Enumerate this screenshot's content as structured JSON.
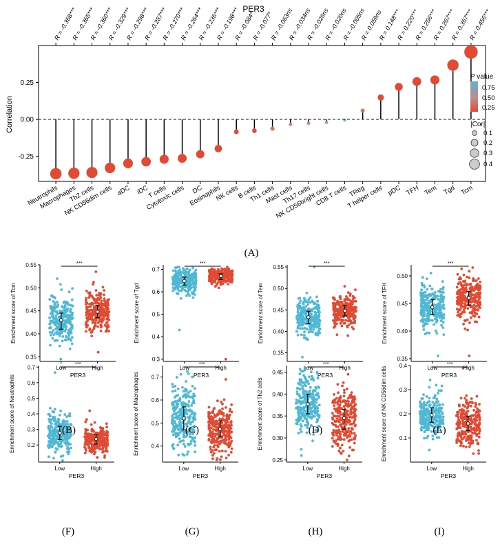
{
  "figure": {
    "panel_labels": [
      "(A)",
      "(B)",
      "(C)",
      "(D)",
      "(E)",
      "(F)",
      "(G)",
      "(H)",
      "(I)"
    ]
  },
  "colors": {
    "low_group": "#4fb8d4",
    "high_group": "#e04b33",
    "lollipop_high": "#e34a33",
    "lollipop_mid": "#c48a88",
    "lollipop_low": "#5db3cd",
    "axis": "#000000"
  },
  "chart_data": [
    {
      "id": "A",
      "type": "lollipop",
      "title": "PER3",
      "ylabel": "Correlation",
      "ylim": [
        -0.42,
        0.5
      ],
      "yticks": [
        -0.25,
        0.0,
        0.25
      ],
      "ytick_labels": [
        "-0.25",
        "0.00",
        "0.25"
      ],
      "categories": [
        "Neutrophils",
        "Macrophages",
        "Th2 cells",
        "NK CD56dim cells",
        "aDC",
        "iDC",
        "T cells",
        "Cytotoxic cells",
        "DC",
        "Eosinophils",
        "NK cells",
        "B cells",
        "Th1 cells",
        "Mast cells",
        "Th17 cells",
        "NK CD56bright cells",
        "CD8 T cells",
        "TReg",
        "T helper cells",
        "pDC",
        "TFH",
        "Tem",
        "Tgd",
        "Tcm"
      ],
      "values": [
        -0.368,
        -0.365,
        -0.36,
        -0.329,
        -0.298,
        -0.287,
        -0.27,
        -0.264,
        -0.236,
        -0.198,
        -0.084,
        -0.077,
        -0.063,
        -0.034,
        -0.026,
        -0.02,
        -0.005,
        0.059,
        0.148,
        0.22,
        0.256,
        0.267,
        0.367,
        0.456
      ],
      "top_labels": [
        "R = -0.368***",
        "R = -0.365***",
        "R = -0.360***",
        "R = -0.329***",
        "R = -0.298***",
        "R = -0.287***",
        "R = -0.270***",
        "R = -0.264***",
        "R = -0.236***",
        "R = -0.198***",
        "R = -0.084*",
        "R = -0.077*",
        "R = -0.063ns",
        "R = -0.034ns",
        "R = -0.026ns",
        "R = -0.020ns",
        "R = -0.005ns",
        "R = 0.059ns",
        "R = 0.148***",
        "R = 0.220***",
        "R = 0.256***",
        "R = 0.267***",
        "R = 0.367***",
        "R = 0.456***"
      ],
      "p_values": [
        0,
        0,
        0,
        0,
        0,
        0,
        0,
        0,
        0,
        0,
        0.02,
        0.03,
        0.08,
        0.35,
        0.45,
        0.55,
        0.9,
        0.1,
        0,
        0,
        0,
        0,
        0,
        0
      ],
      "legend": {
        "pvalue_title": "P value",
        "pvalue_ticks": [
          "0.75",
          "0.50",
          "0.25"
        ],
        "cor_title": "|Cor|",
        "cor_ticks": [
          "0.1",
          "0.2",
          "0.3",
          "0.4"
        ],
        "placement": "right"
      }
    },
    {
      "id": "B",
      "type": "scatter",
      "ylabel": "Enrichment score of Tcm",
      "xlabel": "PER3",
      "categories": [
        "Low",
        "High"
      ],
      "significance": "***",
      "ylim": [
        0.34,
        0.55
      ],
      "yticks": [
        "0.35",
        "0.40",
        "0.45",
        "0.50",
        "0.55"
      ],
      "ytick_values": [
        0.35,
        0.4,
        0.45,
        0.5,
        0.55
      ],
      "series": [
        {
          "group": "Low",
          "median": 0.43,
          "q1": 0.41,
          "q3": 0.445,
          "min": 0.345,
          "max": 0.52
        },
        {
          "group": "High",
          "median": 0.448,
          "q1": 0.435,
          "q3": 0.462,
          "min": 0.36,
          "max": 0.535
        }
      ]
    },
    {
      "id": "C",
      "type": "scatter",
      "ylabel": "Enrichment score of Tgd",
      "xlabel": "PER3",
      "categories": [
        "Low",
        "High"
      ],
      "significance": "***",
      "ylim": [
        0.29,
        0.72
      ],
      "yticks": [
        "0.3",
        "0.4",
        "0.5",
        "0.6",
        "0.7"
      ],
      "ytick_values": [
        0.3,
        0.4,
        0.5,
        0.6,
        0.7
      ],
      "series": [
        {
          "group": "Low",
          "median": 0.648,
          "q1": 0.63,
          "q3": 0.665,
          "min": 0.43,
          "max": 0.71
        },
        {
          "group": "High",
          "median": 0.67,
          "q1": 0.655,
          "q3": 0.68,
          "min": 0.3,
          "max": 0.71
        }
      ]
    },
    {
      "id": "D",
      "type": "scatter",
      "ylabel": "Enrichment score of Tem",
      "xlabel": "PER3",
      "categories": [
        "Low",
        "High"
      ],
      "significance": "***",
      "ylim": [
        0.33,
        0.555
      ],
      "yticks": [
        "0.35",
        "0.40",
        "0.45",
        "0.50",
        "0.55"
      ],
      "ytick_values": [
        0.35,
        0.4,
        0.45,
        0.5,
        0.55
      ],
      "series": [
        {
          "group": "Low",
          "median": 0.433,
          "q1": 0.418,
          "q3": 0.447,
          "min": 0.34,
          "max": 0.55
        },
        {
          "group": "High",
          "median": 0.448,
          "q1": 0.436,
          "q3": 0.46,
          "min": 0.39,
          "max": 0.505
        }
      ]
    },
    {
      "id": "E",
      "type": "scatter",
      "ylabel": "Enrichment score of TFH",
      "xlabel": "PER3",
      "categories": [
        "Low",
        "High"
      ],
      "significance": "***",
      "ylim": [
        0.345,
        0.52
      ],
      "yticks": [
        "0.35",
        "0.40",
        "0.45",
        "0.50"
      ],
      "ytick_values": [
        0.35,
        0.4,
        0.45,
        0.5
      ],
      "series": [
        {
          "group": "Low",
          "median": 0.443,
          "q1": 0.43,
          "q3": 0.457,
          "min": 0.355,
          "max": 0.505
        },
        {
          "group": "High",
          "median": 0.46,
          "q1": 0.447,
          "q3": 0.472,
          "min": 0.355,
          "max": 0.515
        }
      ]
    },
    {
      "id": "F",
      "type": "scatter",
      "ylabel": "Enrichment score of Neutrophils",
      "xlabel": "PER3",
      "categories": [
        "Low",
        "High"
      ],
      "significance": "***",
      "ylim": [
        0.09,
        0.71
      ],
      "yticks": [
        "0.2",
        "0.3",
        "0.4",
        "0.5",
        "0.6",
        "0.7"
      ],
      "ytick_values": [
        0.2,
        0.3,
        0.4,
        0.5,
        0.6,
        0.7
      ],
      "series": [
        {
          "group": "Low",
          "median": 0.278,
          "q1": 0.235,
          "q3": 0.32,
          "min": 0.1,
          "max": 0.665
        },
        {
          "group": "High",
          "median": 0.238,
          "q1": 0.205,
          "q3": 0.265,
          "min": 0.12,
          "max": 0.42
        }
      ]
    },
    {
      "id": "G",
      "type": "scatter",
      "ylabel": "Enrichment score of Macrophages",
      "xlabel": "PER3",
      "categories": [
        "Low",
        "High"
      ],
      "significance": "***",
      "ylim": [
        0.33,
        0.75
      ],
      "yticks": [
        "0.4",
        "0.5",
        "0.6",
        "0.7"
      ],
      "ytick_values": [
        0.4,
        0.5,
        0.6,
        0.7
      ],
      "series": [
        {
          "group": "Low",
          "median": 0.52,
          "q1": 0.47,
          "q3": 0.57,
          "min": 0.36,
          "max": 0.725
        },
        {
          "group": "High",
          "median": 0.473,
          "q1": 0.44,
          "q3": 0.51,
          "min": 0.34,
          "max": 0.69
        }
      ]
    },
    {
      "id": "H",
      "type": "scatter",
      "ylabel": "Enrichment score of Th2 cells",
      "xlabel": "PER3",
      "categories": [
        "Low",
        "High"
      ],
      "significance": "***",
      "ylim": [
        0.245,
        0.465
      ],
      "yticks": [
        "0.25",
        "0.30",
        "0.35",
        "0.40",
        "0.45"
      ],
      "ytick_values": [
        0.25,
        0.3,
        0.35,
        0.4,
        0.45
      ],
      "series": [
        {
          "group": "Low",
          "median": 0.377,
          "q1": 0.355,
          "q3": 0.4,
          "min": 0.26,
          "max": 0.46
        },
        {
          "group": "High",
          "median": 0.345,
          "q1": 0.32,
          "q3": 0.365,
          "min": 0.25,
          "max": 0.445
        }
      ]
    },
    {
      "id": "I",
      "type": "scatter",
      "ylabel": "Enrichment score of NK CD56dim cells",
      "xlabel": "PER3",
      "categories": [
        "Low",
        "High"
      ],
      "significance": "***",
      "ylim": [
        0.0,
        0.4
      ],
      "yticks": [
        "0.1",
        "0.2",
        "0.3",
        "0.4"
      ],
      "ytick_values": [
        0.1,
        0.2,
        0.3,
        0.4
      ],
      "series": [
        {
          "group": "Low",
          "median": 0.195,
          "q1": 0.165,
          "q3": 0.225,
          "min": 0.05,
          "max": 0.34
        },
        {
          "group": "High",
          "median": 0.16,
          "q1": 0.13,
          "q3": 0.19,
          "min": 0.035,
          "max": 0.39
        }
      ]
    }
  ]
}
